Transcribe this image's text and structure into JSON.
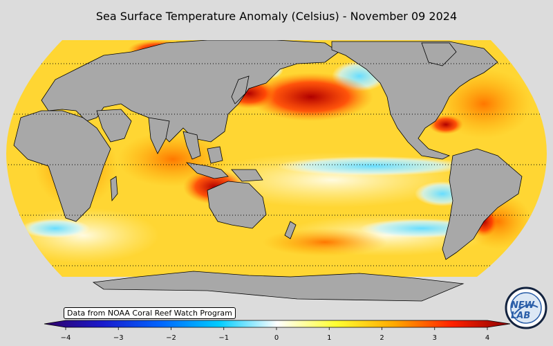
{
  "title": "Sea Surface Temperature Anomaly (Celsius) - November 09 2024",
  "source_note": "Data from NOAA Coral Reef Watch Program",
  "colorbar": {
    "min": -4,
    "max": 4,
    "ticks": [
      "−4",
      "−3",
      "−2",
      "−1",
      "0",
      "1",
      "2",
      "3",
      "4"
    ],
    "tick_values": [
      -4,
      -3,
      -2,
      -1,
      0,
      1,
      2,
      3,
      4
    ],
    "colors": [
      "#300066",
      "#1a1acc",
      "#0066ff",
      "#00ccff",
      "#ffffff",
      "#ffff33",
      "#ffaa00",
      "#ff2200",
      "#8b0000"
    ]
  },
  "map": {
    "projection": "Robinson",
    "center_longitude": "Pacific-centered",
    "land_color": "#a8a8a8",
    "ocean_dominant_color": "#ffd633",
    "hot_spot_color": "#cc1100",
    "cold_spot_color": "#8fe6ff"
  },
  "logo": {
    "text": "NEW LAB",
    "name": "New Lab"
  }
}
